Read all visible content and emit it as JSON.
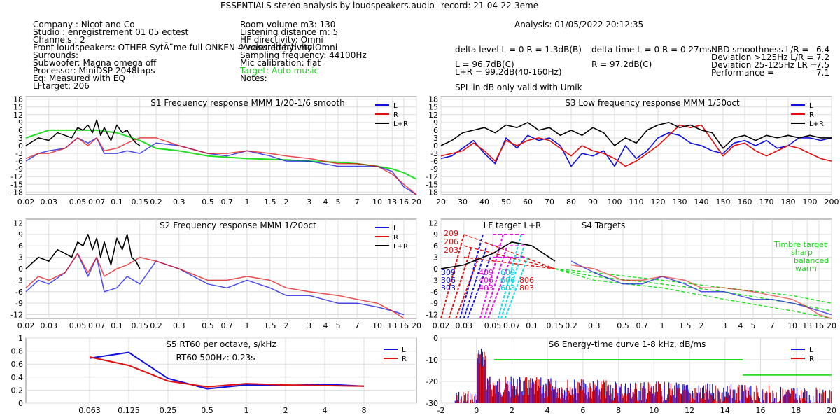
{
  "header": {
    "title": "ESSENTIALS stereo analysis by loudspeakers.audio",
    "record": "record: 21-04-22-3eme",
    "analysis": "Analysis: 01/05/2022 20:12:35"
  },
  "info_left": [
    "Company : Nicot and Co",
    "Studio : enregistrement 01 05 eqtest",
    "Channels : 2",
    "Front loudspeakers: OTHER SytÃ¨me full ONKEN 4 voies directivity Omni",
    "Surrounds:",
    "Subwoofer: Magna omega off",
    "Processor: MiniDSP 2048taps",
    "Eq: Measured with EQ",
    "LFtarget: 206"
  ],
  "info_mid": [
    "Room volume m3: 130",
    "Listening distance m: 5",
    "HF directivity: Omni",
    "Measured by: moi",
    "Sampling frequency: 44100Hz",
    "Mic calibration: flat",
    "Target: Auto music",
    "Notes:"
  ],
  "metrics": {
    "delta_level": "delta level L = 0  R = 1.3dB(B)",
    "delta_time": "delta time  L = 0  R = 0.27ms",
    "L_level": "L =      96.7dB(C)",
    "LR_level": "L+R = 99.2dB(40-160Hz)",
    "R_level": "R =      97.2dB(C)",
    "spl_note": "SPL in dB only valid with Umik",
    "nbd_label": "NBD smoothness L/R =",
    "nbd_value": "6.4",
    "dev125_label": "Deviation >125Hz L/R =",
    "dev125_value": "7.2",
    "dev25_label": "Deviation 25-125Hz LR =",
    "dev25_value": "7.5",
    "perf_label": "Performance =",
    "perf_value": "7.1"
  },
  "colors": {
    "L": "#1010e0",
    "R": "#e01010",
    "LR": "#000000",
    "target": "#22dd22",
    "grid": "#dddddd"
  },
  "chart_data": [
    {
      "id": "S1",
      "type": "line",
      "title": "S1  Frequency response MMM 1/20-1/6 smooth",
      "xscale": "log",
      "xlabel_unit": "kHz",
      "xticks": [
        "0.02",
        "0.03",
        "0.05",
        "0.07",
        "0.1",
        "0.15",
        "0.2",
        "0.3",
        "0.5",
        "0.7",
        "1",
        "1.5",
        "2",
        "3",
        "4",
        "5",
        "7",
        "10",
        "13",
        "16",
        "20"
      ],
      "yticks": [
        "18",
        "15",
        "12",
        "9",
        "6",
        "3",
        "0",
        "-3",
        "-6",
        "-9",
        "-12",
        "-15",
        "-18"
      ],
      "ylim": [
        -19,
        19
      ],
      "legend": [
        "L",
        "R",
        "L+R"
      ],
      "series": [
        {
          "name": "L",
          "x": [
            0.02,
            0.025,
            0.03,
            0.04,
            0.05,
            0.06,
            0.07,
            0.08,
            0.1,
            0.12,
            0.15,
            0.2,
            0.3,
            0.5,
            0.7,
            1,
            1.5,
            2,
            3,
            5,
            7,
            10,
            13,
            16,
            20
          ],
          "y": [
            -6,
            -3,
            -2,
            -1,
            3,
            1,
            3,
            -3,
            -3,
            -2,
            -3,
            1,
            0,
            -3,
            -4,
            -2,
            -4,
            -6,
            -6,
            -8,
            -8,
            -8,
            -10,
            -16,
            -19
          ]
        },
        {
          "name": "R",
          "x": [
            0.02,
            0.025,
            0.03,
            0.04,
            0.05,
            0.06,
            0.07,
            0.08,
            0.1,
            0.12,
            0.15,
            0.2,
            0.3,
            0.5,
            0.7,
            1,
            1.5,
            2,
            3,
            5,
            7,
            10,
            13,
            16,
            20
          ],
          "y": [
            -5,
            -3,
            -3,
            -1,
            3,
            0,
            3,
            -2,
            -1,
            1,
            3,
            3,
            0,
            -3,
            -3,
            -2,
            -3,
            -4,
            -5,
            -7,
            -7,
            -8,
            -11,
            -15,
            -19
          ]
        },
        {
          "name": "L+R",
          "x": [
            0.02,
            0.025,
            0.03,
            0.035,
            0.04,
            0.045,
            0.05,
            0.055,
            0.06,
            0.065,
            0.07,
            0.075,
            0.08,
            0.09,
            0.1,
            0.11,
            0.12,
            0.13,
            0.14,
            0.15
          ],
          "y": [
            0,
            3,
            2,
            5,
            4,
            3,
            7,
            6,
            8,
            5,
            10,
            4,
            7,
            2,
            8,
            5,
            6,
            3,
            1,
            0
          ]
        },
        {
          "name": "Target",
          "x": [
            0.02,
            0.03,
            0.05,
            0.07,
            0.1,
            0.15,
            0.2,
            0.3,
            0.5,
            1,
            2,
            3,
            5,
            7,
            10,
            13,
            16,
            20
          ],
          "y": [
            3,
            6,
            6,
            6,
            5,
            2,
            -1,
            -2,
            -4,
            -5,
            -5.5,
            -6,
            -6.5,
            -7,
            -8,
            -9,
            -10.5,
            -13
          ]
        }
      ]
    },
    {
      "id": "S3",
      "type": "line",
      "title": "S3  Low frequency response MMM 1/50oct",
      "xscale": "linear",
      "xlim": [
        20,
        200
      ],
      "xticks": [
        "20",
        "30",
        "40",
        "50",
        "60",
        "70",
        "80",
        "90",
        "100",
        "110",
        "120",
        "130",
        "140",
        "150",
        "160",
        "170",
        "180",
        "190",
        "200"
      ],
      "yticks": [
        "18",
        "15",
        "12",
        "9",
        "6",
        "3",
        "0",
        "-3",
        "-6",
        "-9",
        "-12",
        "-15",
        "-18"
      ],
      "ylim": [
        -19,
        19
      ],
      "legend": [
        "L",
        "R",
        "L+R"
      ],
      "series": [
        {
          "name": "L",
          "x": [
            20,
            25,
            30,
            35,
            40,
            45,
            50,
            55,
            60,
            65,
            70,
            75,
            80,
            85,
            90,
            95,
            100,
            105,
            110,
            115,
            120,
            125,
            130,
            135,
            140,
            145,
            150,
            155,
            160,
            165,
            170,
            175,
            180,
            185,
            190,
            195,
            200
          ],
          "y": [
            -5,
            -4,
            -1,
            2,
            -3,
            -7,
            3,
            -1,
            4,
            2,
            3,
            0,
            -8,
            -3,
            -4,
            -2,
            -8,
            0,
            -5,
            -2,
            3,
            5,
            4,
            1,
            0,
            -2,
            -3,
            1,
            2,
            0,
            2,
            -1,
            0,
            3,
            3,
            2,
            3
          ]
        },
        {
          "name": "R",
          "x": [
            20,
            25,
            30,
            35,
            40,
            45,
            50,
            55,
            60,
            65,
            70,
            75,
            80,
            85,
            90,
            95,
            100,
            105,
            110,
            115,
            120,
            125,
            130,
            135,
            140,
            145,
            150,
            155,
            160,
            165,
            170,
            175,
            180,
            185,
            190,
            195,
            200
          ],
          "y": [
            -4,
            -3,
            -2,
            1,
            -2,
            -6,
            2,
            0,
            2,
            3,
            2,
            -1,
            -4,
            0,
            -2,
            -3,
            -5,
            -8,
            -6,
            -3,
            0,
            4,
            8,
            7,
            8,
            2,
            -4,
            0,
            1,
            -2,
            -4,
            -2,
            0,
            -1,
            -3,
            -5,
            -6
          ]
        },
        {
          "name": "L+R",
          "x": [
            20,
            25,
            30,
            35,
            40,
            45,
            50,
            55,
            60,
            65,
            70,
            75,
            80,
            85,
            90,
            95,
            100,
            105,
            110,
            115,
            120,
            125,
            130,
            135,
            140,
            145,
            150,
            155,
            160,
            165,
            170,
            175,
            180,
            185,
            190,
            195,
            200
          ],
          "y": [
            0,
            2,
            5,
            6,
            7,
            5,
            8,
            7,
            9,
            6,
            7,
            4,
            6,
            4,
            7,
            5,
            0,
            3,
            1,
            6,
            8,
            9,
            7,
            8,
            6,
            5,
            -1,
            3,
            4,
            2,
            4,
            3,
            4,
            3,
            4,
            3,
            3
          ]
        }
      ]
    },
    {
      "id": "S2",
      "type": "line",
      "title": "S2  Frequency response MMM 1/20oct",
      "xscale": "log",
      "xlabel_unit": "kHz",
      "xticks": [
        "0.02",
        "0.03",
        "0.05",
        "0.07",
        "0.1",
        "0.15",
        "0.2",
        "0.3",
        "0.5",
        "0.7",
        "1",
        "1.5",
        "2",
        "3",
        "4",
        "5",
        "7",
        "10",
        "13",
        "16",
        "20"
      ],
      "yticks": [
        "12",
        "9",
        "6",
        "3",
        "0",
        "-3",
        "-6",
        "-9",
        "-12"
      ],
      "ylim": [
        -13,
        13
      ],
      "legend": [
        "L",
        "R",
        "L+R"
      ],
      "series": [
        {
          "name": "L",
          "x": [
            0.02,
            0.025,
            0.03,
            0.04,
            0.05,
            0.06,
            0.07,
            0.08,
            0.1,
            0.12,
            0.15,
            0.2,
            0.3,
            0.5,
            0.7,
            1,
            1.5,
            2,
            3,
            5,
            7,
            10,
            13,
            16
          ],
          "y": [
            -6,
            -3,
            -4,
            -1,
            4,
            -2,
            3,
            -6,
            -5,
            -2,
            -4,
            2,
            0,
            -4,
            -5,
            -3,
            -5,
            -7,
            -7,
            -9,
            -9,
            -10,
            -11,
            -12
          ]
        },
        {
          "name": "R",
          "x": [
            0.02,
            0.025,
            0.03,
            0.04,
            0.05,
            0.06,
            0.07,
            0.08,
            0.1,
            0.12,
            0.15,
            0.2,
            0.3,
            0.5,
            0.7,
            1,
            1.5,
            2,
            3,
            5,
            7,
            10,
            13,
            16
          ],
          "y": [
            -5,
            -2,
            -3,
            -1,
            4,
            -1,
            3,
            -2,
            0,
            1,
            3,
            2,
            0,
            -3,
            -3,
            -2,
            -3,
            -5,
            -6,
            -7,
            -8,
            -9,
            -11,
            -13
          ]
        },
        {
          "name": "L+R",
          "x": [
            0.02,
            0.025,
            0.03,
            0.035,
            0.04,
            0.045,
            0.05,
            0.055,
            0.06,
            0.065,
            0.07,
            0.075,
            0.08,
            0.09,
            0.1,
            0.11,
            0.12,
            0.13,
            0.14,
            0.15
          ],
          "y": [
            0,
            3,
            2,
            5,
            4,
            3,
            7,
            6,
            9,
            5,
            8,
            3,
            7,
            1,
            8,
            5,
            9,
            3,
            2,
            0
          ]
        }
      ]
    },
    {
      "id": "S4",
      "type": "line",
      "title": "S4 Targets",
      "xscale": "log",
      "xlabel_unit": "kHz",
      "xticks": [
        "0.02",
        "0.03",
        "0.05",
        "0.07",
        "0.1",
        "0.15",
        "0.2",
        "0.3",
        "0.5",
        "0.7",
        "1",
        "1.5",
        "2",
        "3",
        "4",
        "5",
        "7",
        "10",
        "13",
        "16",
        "20"
      ],
      "yticks": [
        "12",
        "9",
        "6",
        "3",
        "0",
        "-3",
        "-6",
        "-9",
        "-12"
      ],
      "ylim": [
        -13,
        13
      ],
      "lf_target_label": "LF target L+R",
      "lf_labels_red": [
        "209",
        "206",
        "203"
      ],
      "lf_labels_blue": [
        "309",
        "306",
        "303"
      ],
      "lf_labels_magenta": [
        "409",
        "406",
        "403"
      ],
      "lf_labels_cyan": [
        "609",
        "606",
        "603"
      ],
      "lf_labels_red2": [
        "806",
        "803"
      ],
      "timbre_labels": [
        "Timbre target",
        "sharp",
        "balanced",
        "warm"
      ],
      "series": [
        {
          "name": "L",
          "x": [
            0.2,
            0.3,
            0.5,
            0.7,
            1,
            1.5,
            2,
            3,
            5,
            7,
            10,
            13,
            16,
            20
          ],
          "y": [
            2,
            -1,
            -4,
            -4,
            -2,
            -4,
            -6,
            -6,
            -8,
            -8,
            -9,
            -10,
            -11,
            -12
          ]
        },
        {
          "name": "R",
          "x": [
            0.2,
            0.3,
            0.5,
            0.7,
            1,
            1.5,
            2,
            3,
            5,
            7,
            10,
            13,
            16,
            20
          ],
          "y": [
            1,
            0,
            -3,
            -3,
            -2,
            -3,
            -5,
            -5,
            -6,
            -7,
            -8,
            -10,
            -12,
            -13
          ]
        },
        {
          "name": "L+R",
          "x": [
            0.02,
            0.03,
            0.05,
            0.07,
            0.1,
            0.15
          ],
          "y": [
            0,
            1,
            4,
            7,
            6,
            2
          ]
        },
        {
          "name": "Timbre sharp",
          "x": [
            0.15,
            0.3,
            1,
            3,
            10,
            20
          ],
          "y": [
            0,
            -1,
            -3,
            -5,
            -7,
            -9
          ]
        },
        {
          "name": "Timbre balanced",
          "x": [
            0.15,
            0.3,
            1,
            3,
            10,
            20
          ],
          "y": [
            0,
            -2,
            -4,
            -6,
            -9,
            -11
          ]
        },
        {
          "name": "Timbre warm",
          "x": [
            0.15,
            0.3,
            1,
            3,
            10,
            20
          ],
          "y": [
            0,
            -3,
            -5,
            -8,
            -11,
            -13
          ]
        }
      ]
    },
    {
      "id": "S5",
      "type": "line",
      "title": "S5  RT60 per octave, s/kHz",
      "annotation": "RT60 500Hz: 0.23s",
      "xticks": [
        "0.063",
        "0.125",
        "0.25",
        "0.5",
        "1",
        "2",
        "4",
        "8"
      ],
      "yticks": [
        "1",
        "0.8",
        "0.6",
        "0.4",
        "0.2",
        "0"
      ],
      "ylim": [
        0,
        1
      ],
      "legend": [
        "L",
        "R"
      ],
      "series": [
        {
          "name": "L",
          "x": [
            "0.063",
            "0.125",
            "0.25",
            "0.5",
            "1",
            "2",
            "4",
            "8"
          ],
          "y": [
            0.69,
            0.78,
            0.38,
            0.22,
            0.28,
            0.27,
            0.29,
            0.26
          ]
        },
        {
          "name": "R",
          "x": [
            "0.063",
            "0.125",
            "0.25",
            "0.5",
            "1",
            "2",
            "4",
            "8"
          ],
          "y": [
            0.71,
            0.58,
            0.34,
            0.25,
            0.3,
            0.28,
            0.27,
            0.26
          ]
        }
      ]
    },
    {
      "id": "S6",
      "type": "line",
      "title": "S6  Energy-time curve 1-8 kHz, dB/ms",
      "xlim": [
        -2,
        20
      ],
      "xticks": [
        "-2",
        "0",
        "2",
        "4",
        "6",
        "8",
        "10",
        "12",
        "14",
        "16",
        "18",
        "20"
      ],
      "yticks": [
        "0",
        "-10",
        "-20",
        "-30"
      ],
      "ylim": [
        -30,
        0
      ],
      "legend": [
        "L",
        "R"
      ],
      "target": [
        {
          "x": [
            1,
            15
          ],
          "y": -10
        },
        {
          "x": [
            15,
            20
          ],
          "y": -17
        }
      ]
    }
  ]
}
